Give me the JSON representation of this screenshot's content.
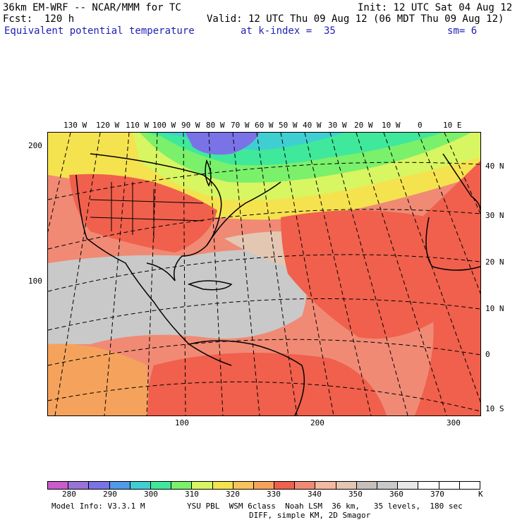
{
  "header": {
    "model": "36km EM-WRF -- NCAR/MMM for TC",
    "init": "Init: 12 UTC Sat 04 Aug 12",
    "fcst": "Fcst:  120 h",
    "valid": "Valid: 12 UTC Thu 09 Aug 12 (06 MDT Thu 09 Aug 12)",
    "field": "Equivalent potential temperature",
    "kindex": "at k-index =  35",
    "sm": "sm= 6"
  },
  "map": {
    "lon_labels": [
      "130 W",
      "120 W",
      "110 W",
      "100 W",
      "90 W",
      "80 W",
      "70 W",
      "60 W",
      "50 W",
      "40 W",
      "30 W",
      "20 W",
      "10 W",
      "0",
      "10 E"
    ],
    "lat_labels": [
      "40 N",
      "30 N",
      "20 N",
      "10 N",
      "0",
      "10 S"
    ],
    "grid_y_labels": [
      "200",
      "100"
    ],
    "grid_x_labels": [
      "100",
      "200",
      "300"
    ]
  },
  "legend": {
    "labels": [
      "280",
      "290",
      "300",
      "310",
      "320",
      "330",
      "340",
      "350",
      "360",
      "370",
      "K"
    ],
    "colors": [
      "#c95ccb",
      "#9a73d8",
      "#7a73e8",
      "#4f9be8",
      "#3fcfd2",
      "#3fe89b",
      "#7af06b",
      "#d8f562",
      "#f5e24f",
      "#f7c35a",
      "#f5a35c",
      "#f0604c",
      "#f08a75",
      "#f5b9a0",
      "#e3c7b3",
      "#c9bfba",
      "#c9c9c9",
      "#e8e8e8",
      "#ffffff",
      "#ffffff",
      "#ffffff"
    ]
  },
  "footer": {
    "info": "Model Info: V3.3.1 M",
    "physics": "YSU PBL  WSM 6class  Noah LSM  36 km,   35 levels,  180 sec",
    "diff": "DIFF, simple KM, 2D Smagor"
  }
}
